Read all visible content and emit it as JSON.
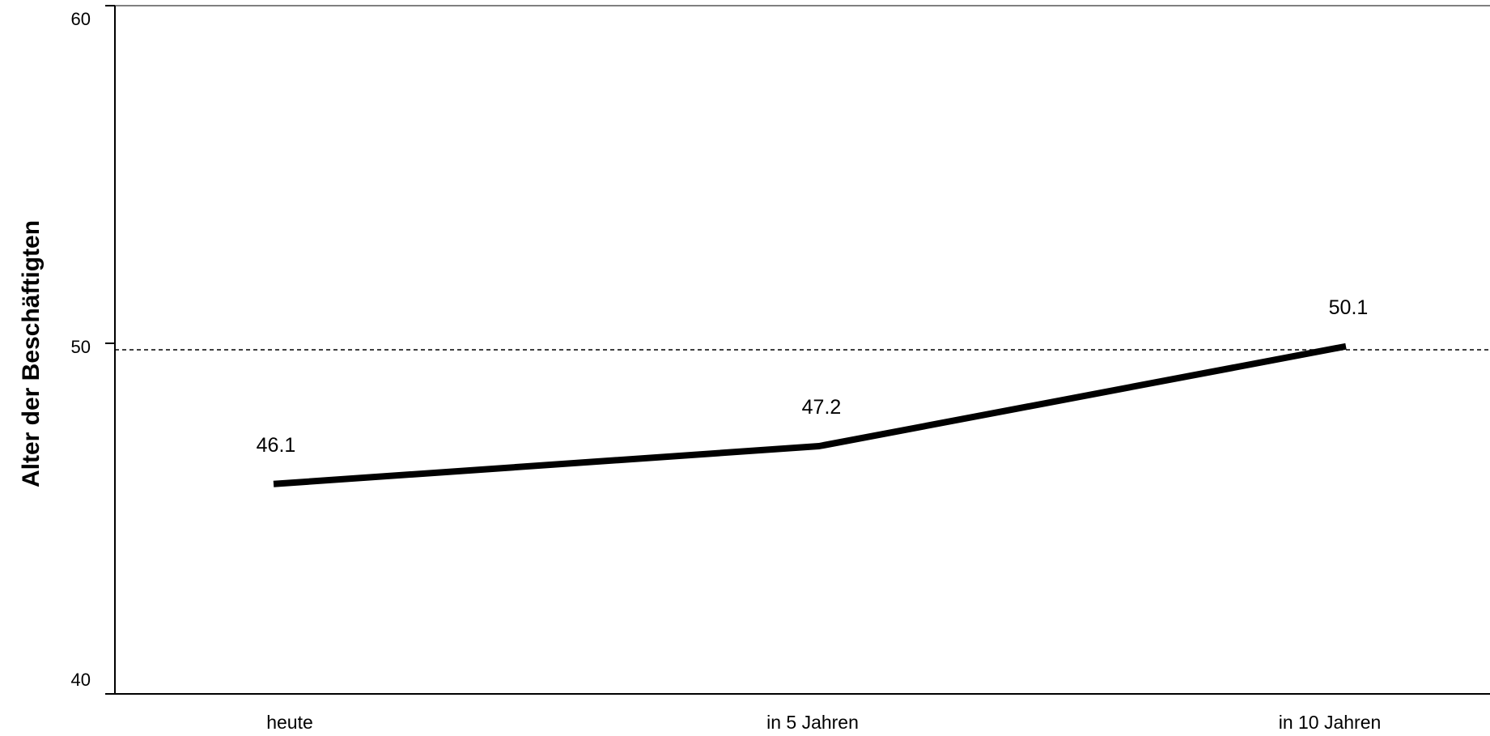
{
  "chart_data": {
    "type": "line",
    "categories": [
      "heute",
      "in 5 Jahren",
      "in 10 Jahren"
    ],
    "series": [
      {
        "values": [
          46.1,
          47.2,
          50.1
        ]
      }
    ],
    "data_labels": [
      "46.1",
      "47.2",
      "50.1"
    ],
    "y_ticks": [
      "40",
      "50",
      "60"
    ],
    "ylabel": "Alter der Beschäftigten",
    "ylim": [
      40,
      60
    ],
    "reference_line": {
      "value": 50,
      "style": "dashed"
    },
    "grid": false,
    "legend": "none",
    "line_color": "#000000"
  }
}
